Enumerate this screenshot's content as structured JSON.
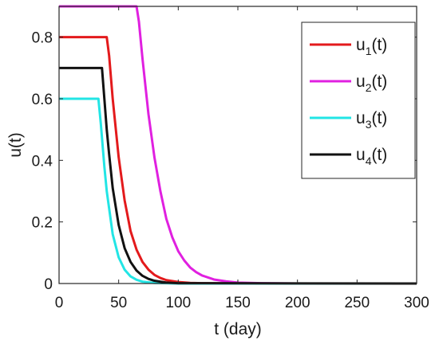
{
  "chart_data": {
    "type": "line",
    "title": "",
    "xlabel": "t (day)",
    "ylabel": "u(t)",
    "xlim": [
      0,
      300
    ],
    "ylim": [
      0,
      0.9
    ],
    "xticks": [
      0,
      50,
      100,
      150,
      200,
      250,
      300
    ],
    "yticks": [
      0,
      0.2,
      0.4,
      0.6,
      0.8
    ],
    "ytick_labels": [
      "0",
      "0.2",
      "0.4",
      "0.6",
      "0.8"
    ],
    "grid": false,
    "legend_position": "top-right",
    "series": [
      {
        "name": "u1(t)",
        "name_base": "u",
        "name_sub": "1",
        "name_suffix": "(t)",
        "color": "#e31a1c",
        "x": [
          0,
          40,
          42,
          45,
          50,
          55,
          60,
          65,
          70,
          75,
          80,
          85,
          90,
          100,
          110,
          120,
          130,
          150,
          200,
          300
        ],
        "y": [
          0.8,
          0.8,
          0.74,
          0.6,
          0.41,
          0.27,
          0.17,
          0.11,
          0.07,
          0.045,
          0.028,
          0.018,
          0.011,
          0.005,
          0.002,
          0.001,
          0.0005,
          0,
          0,
          0
        ]
      },
      {
        "name": "u2(t)",
        "name_base": "u",
        "name_sub": "2",
        "name_suffix": "(t)",
        "color": "#e020e0",
        "x": [
          0,
          65,
          67,
          70,
          75,
          80,
          85,
          90,
          95,
          100,
          105,
          110,
          115,
          120,
          130,
          140,
          150,
          170,
          200,
          300
        ],
        "y": [
          0.9,
          0.9,
          0.85,
          0.73,
          0.55,
          0.41,
          0.3,
          0.21,
          0.15,
          0.105,
          0.075,
          0.052,
          0.037,
          0.026,
          0.013,
          0.007,
          0.003,
          0.001,
          0,
          0
        ]
      },
      {
        "name": "u3(t)",
        "name_base": "u",
        "name_sub": "3",
        "name_suffix": "(t)",
        "color": "#22e5e5",
        "x": [
          0,
          33,
          35,
          38,
          40,
          45,
          50,
          55,
          60,
          65,
          70,
          80,
          100,
          300
        ],
        "y": [
          0.6,
          0.6,
          0.52,
          0.38,
          0.3,
          0.16,
          0.085,
          0.045,
          0.023,
          0.012,
          0.006,
          0.002,
          0,
          0
        ]
      },
      {
        "name": "u4(t)",
        "name_base": "u",
        "name_sub": "4",
        "name_suffix": "(t)",
        "color": "#111111",
        "x": [
          0,
          36,
          38,
          40,
          42,
          45,
          50,
          55,
          60,
          65,
          70,
          75,
          80,
          90,
          100,
          300
        ],
        "y": [
          0.7,
          0.7,
          0.6,
          0.5,
          0.42,
          0.31,
          0.19,
          0.115,
          0.07,
          0.042,
          0.025,
          0.015,
          0.009,
          0.003,
          0.001,
          0
        ]
      }
    ]
  }
}
